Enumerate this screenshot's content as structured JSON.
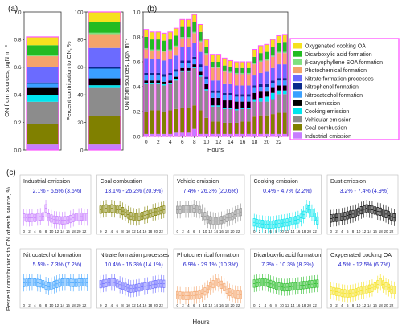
{
  "colors": {
    "Industrial emission": "#c77dff",
    "Coal combustion": "#808000",
    "Vehicular emission": "#8c8c8c",
    "Cooking emission": "#00e5ee",
    "Dust emission": "#000000",
    "Nitrocatechol formation": "#3aa0ff",
    "Nitrophenol formation": "#0a2a8c",
    "Nitrate formation processes": "#6b6bff",
    "Photochemical formation": "#f4a46b",
    "β-caryophyllene SOA formation": "#7fe07f",
    "Dicarboxylic acid formation": "#22bb22",
    "Oxygenated cooking OA": "#f5e11e"
  },
  "chart_data": [
    {
      "panel": "(a)",
      "type": "bar",
      "stacked": true,
      "ylabel": "ON from sources, µgN m⁻³",
      "ylim": [
        0,
        1.0
      ],
      "yticks": [
        "0.0",
        "0.2",
        "0.4",
        "0.6",
        "0.8",
        "1.0"
      ],
      "series": [
        {
          "name": "Industrial emission",
          "values": [
            0.04
          ]
        },
        {
          "name": "Coal combustion",
          "values": [
            0.15
          ]
        },
        {
          "name": "Vehicular emission",
          "values": [
            0.16
          ]
        },
        {
          "name": "Cooking emission",
          "values": [
            0.05
          ]
        },
        {
          "name": "Dust emission",
          "values": [
            0.05
          ]
        },
        {
          "name": "Nitrocatechol formation",
          "values": [
            0.03
          ]
        },
        {
          "name": "Nitrophenol formation",
          "values": [
            0.01
          ]
        },
        {
          "name": "Nitrate formation processes",
          "values": [
            0.11
          ]
        },
        {
          "name": "Photochemical formation",
          "values": [
            0.08
          ]
        },
        {
          "name": "β-caryophyllene SOA formation",
          "values": [
            0.01
          ]
        },
        {
          "name": "Dicarboxylic acid formation",
          "values": [
            0.07
          ]
        },
        {
          "name": "Oxygenated cooking OA",
          "values": [
            0.06
          ]
        }
      ]
    },
    {
      "panel": "(a)",
      "type": "bar",
      "stacked": true,
      "ylabel": "Percent contribution to ON, %",
      "ylim": [
        0,
        100
      ],
      "yticks": [
        "0",
        "20",
        "40",
        "60",
        "80",
        "100"
      ],
      "series": [
        {
          "name": "Industrial emission",
          "values": [
            4
          ]
        },
        {
          "name": "Coal combustion",
          "values": [
            21
          ]
        },
        {
          "name": "Vehicular emission",
          "values": [
            20
          ]
        },
        {
          "name": "Cooking emission",
          "values": [
            2
          ]
        },
        {
          "name": "Dust emission",
          "values": [
            5
          ]
        },
        {
          "name": "Nitrocatechol formation",
          "values": [
            7
          ]
        },
        {
          "name": "Nitrophenol formation",
          "values": [
            1
          ]
        },
        {
          "name": "Nitrate formation processes",
          "values": [
            14
          ]
        },
        {
          "name": "Photochemical formation",
          "values": [
            10
          ]
        },
        {
          "name": "β-caryophyllene SOA formation",
          "values": [
            1
          ]
        },
        {
          "name": "Dicarboxylic acid formation",
          "values": [
            8
          ]
        },
        {
          "name": "Oxygenated cooking OA",
          "values": [
            7
          ]
        }
      ]
    },
    {
      "panel": "(b)",
      "type": "bar",
      "stacked": true,
      "xlabel": "Hours",
      "ylabel": "ON from sources, µgN m⁻³",
      "ylim": [
        0,
        1.0
      ],
      "yticks": [
        "0.0",
        "0.2",
        "0.4",
        "0.6",
        "0.8",
        "1.0"
      ],
      "categories": [
        "0",
        "1",
        "2",
        "3",
        "4",
        "5",
        "6",
        "7",
        "8",
        "9",
        "10",
        "11",
        "12",
        "13",
        "14",
        "15",
        "16",
        "17",
        "18",
        "19",
        "20",
        "21",
        "22",
        "23"
      ],
      "xtick_labels": [
        "0",
        "2",
        "4",
        "6",
        "8",
        "10",
        "12",
        "14",
        "16",
        "18",
        "20",
        "22"
      ],
      "legend": "right",
      "series": [
        {
          "name": "Industrial emission",
          "values": [
            0.02,
            0.02,
            0.02,
            0.02,
            0.02,
            0.03,
            0.03,
            0.03,
            0.06,
            0.02,
            0.02,
            0.02,
            0.02,
            0.02,
            0.02,
            0.02,
            0.02,
            0.02,
            0.02,
            0.02,
            0.02,
            0.02,
            0.02,
            0.02
          ]
        },
        {
          "name": "Coal combustion",
          "values": [
            0.18,
            0.19,
            0.19,
            0.18,
            0.19,
            0.19,
            0.2,
            0.2,
            0.19,
            0.19,
            0.13,
            0.1,
            0.1,
            0.09,
            0.09,
            0.09,
            0.1,
            0.1,
            0.14,
            0.15,
            0.15,
            0.16,
            0.17,
            0.17
          ]
        },
        {
          "name": "Vehicular emission",
          "values": [
            0.22,
            0.21,
            0.21,
            0.21,
            0.21,
            0.23,
            0.29,
            0.29,
            0.3,
            0.27,
            0.22,
            0.12,
            0.12,
            0.11,
            0.11,
            0.1,
            0.1,
            0.1,
            0.12,
            0.11,
            0.11,
            0.12,
            0.15,
            0.15
          ]
        },
        {
          "name": "Cooking emission",
          "values": [
            0.01,
            0.01,
            0.01,
            0.01,
            0.01,
            0.01,
            0.01,
            0.01,
            0.01,
            0.01,
            0.01,
            0.01,
            0.01,
            0.01,
            0.01,
            0.01,
            0.01,
            0.01,
            0.02,
            0.03,
            0.04,
            0.05,
            0.03,
            0.03
          ]
        },
        {
          "name": "Dust emission",
          "values": [
            0.02,
            0.02,
            0.02,
            0.02,
            0.02,
            0.02,
            0.02,
            0.02,
            0.02,
            0.03,
            0.04,
            0.06,
            0.06,
            0.06,
            0.06,
            0.06,
            0.05,
            0.05,
            0.05,
            0.05,
            0.04,
            0.04,
            0.04,
            0.04
          ]
        },
        {
          "name": "Nitrocatechol formation",
          "values": [
            0.04,
            0.04,
            0.04,
            0.04,
            0.04,
            0.04,
            0.04,
            0.04,
            0.04,
            0.04,
            0.04,
            0.04,
            0.04,
            0.04,
            0.04,
            0.04,
            0.04,
            0.04,
            0.04,
            0.04,
            0.04,
            0.04,
            0.04,
            0.04
          ]
        },
        {
          "name": "Nitrophenol formation",
          "values": [
            0.02,
            0.02,
            0.02,
            0.02,
            0.02,
            0.02,
            0.02,
            0.02,
            0.02,
            0.02,
            0.02,
            0.02,
            0.02,
            0.02,
            0.02,
            0.02,
            0.02,
            0.02,
            0.02,
            0.02,
            0.02,
            0.02,
            0.02,
            0.02
          ]
        },
        {
          "name": "Nitrate formation processes",
          "values": [
            0.12,
            0.11,
            0.11,
            0.11,
            0.11,
            0.11,
            0.11,
            0.11,
            0.11,
            0.1,
            0.09,
            0.08,
            0.08,
            0.07,
            0.07,
            0.07,
            0.07,
            0.07,
            0.08,
            0.09,
            0.1,
            0.1,
            0.11,
            0.11
          ]
        },
        {
          "name": "Photochemical formation",
          "values": [
            0.07,
            0.07,
            0.07,
            0.07,
            0.07,
            0.07,
            0.07,
            0.07,
            0.08,
            0.08,
            0.09,
            0.1,
            0.1,
            0.1,
            0.09,
            0.09,
            0.09,
            0.09,
            0.09,
            0.09,
            0.09,
            0.09,
            0.09,
            0.09
          ]
        },
        {
          "name": "β-caryophyllene SOA formation",
          "values": [
            0.01,
            0.01,
            0.01,
            0.01,
            0.01,
            0.01,
            0.01,
            0.01,
            0.01,
            0.01,
            0.01,
            0.01,
            0.01,
            0.01,
            0.01,
            0.01,
            0.01,
            0.01,
            0.01,
            0.01,
            0.01,
            0.01,
            0.01,
            0.01
          ]
        },
        {
          "name": "Dicarboxylic acid formation",
          "values": [
            0.09,
            0.08,
            0.08,
            0.08,
            0.08,
            0.08,
            0.08,
            0.08,
            0.08,
            0.07,
            0.05,
            0.04,
            0.04,
            0.04,
            0.04,
            0.04,
            0.04,
            0.04,
            0.05,
            0.06,
            0.06,
            0.07,
            0.07,
            0.08
          ]
        },
        {
          "name": "Oxygenated cooking OA",
          "values": [
            0.06,
            0.06,
            0.06,
            0.06,
            0.06,
            0.06,
            0.06,
            0.06,
            0.06,
            0.06,
            0.06,
            0.06,
            0.06,
            0.06,
            0.05,
            0.05,
            0.05,
            0.05,
            0.06,
            0.06,
            0.06,
            0.06,
            0.06,
            0.06
          ]
        }
      ]
    },
    {
      "panel": "(c)",
      "type": "box",
      "xlabel": "Hours",
      "ylabel": "Percent contributions to ON of each source, %",
      "xtick_labels": [
        "0",
        "2",
        "4",
        "6",
        "8",
        "10",
        "12",
        "14",
        "16",
        "18",
        "20",
        "22"
      ],
      "subplots": [
        {
          "name": "Industrial emission",
          "range_label": "2.1% - 6.5% (3.6%)",
          "medians": [
            3.2,
            3.0,
            3.0,
            3.1,
            3.0,
            3.3,
            3.5,
            3.6,
            6.5,
            3.2,
            2.8,
            2.4,
            2.3,
            2.2,
            2.1,
            2.2,
            2.3,
            2.6,
            3.0,
            3.3,
            3.4,
            3.5,
            3.3,
            3.3
          ]
        },
        {
          "name": "Coal combustion",
          "range_label": "13.1% - 26.2% (20.9%)",
          "medians": [
            24,
            25,
            26,
            25,
            26,
            25,
            24,
            24,
            22,
            20,
            17,
            15,
            14,
            13.1,
            14,
            15,
            16,
            17,
            18,
            20,
            21,
            22,
            23,
            24
          ]
        },
        {
          "name": "Vehicle emission",
          "range_label": "7.4% - 26.3% (20.6%)",
          "medians": [
            24,
            24,
            25,
            25,
            25,
            25,
            26.3,
            25,
            24,
            20,
            15,
            10,
            9,
            8,
            7.4,
            8,
            9,
            10,
            12,
            13,
            15,
            17,
            19,
            21
          ]
        },
        {
          "name": "Cooking emission",
          "range_label": "0.4% - 4.7% (2.2%)",
          "medians": [
            1.0,
            0.8,
            0.7,
            0.6,
            0.5,
            0.5,
            0.4,
            0.5,
            0.6,
            0.7,
            0.8,
            0.9,
            1.0,
            1.2,
            1.4,
            1.6,
            1.8,
            2.2,
            3.0,
            4.7,
            4.4,
            3.5,
            2.5,
            1.5
          ]
        },
        {
          "name": "Dust emission",
          "range_label": "3.2% - 7.4% (4.9%)",
          "medians": [
            3.2,
            3.4,
            3.5,
            3.8,
            4.0,
            4.2,
            4.5,
            4.8,
            5.0,
            5.5,
            6.0,
            6.6,
            7.0,
            7.4,
            7.0,
            6.8,
            6.5,
            6.2,
            6.0,
            5.5,
            5.0,
            4.5,
            4.0,
            3.6
          ]
        },
        {
          "name": "Nitrocatechol formation",
          "range_label": "5.5% - 7.3% (7.2%)",
          "medians": [
            7.0,
            7.1,
            7.2,
            7.3,
            7.2,
            7.0,
            6.8,
            6.5,
            6.0,
            5.5,
            5.8,
            6.2,
            6.6,
            7.0,
            7.2,
            7.3,
            7.2,
            7.1,
            7.0,
            7.0,
            7.1,
            7.2,
            7.2,
            7.1
          ]
        },
        {
          "name": "Nitrate formation processes",
          "range_label": "10.4% - 16.3% (14.1%)",
          "medians": [
            14.5,
            15,
            15.5,
            16,
            16.3,
            16,
            15,
            14,
            13,
            12,
            11,
            10.4,
            10.6,
            11,
            11.5,
            12,
            12.5,
            13,
            13.5,
            14,
            14.5,
            15,
            15,
            14.8
          ]
        },
        {
          "name": "Photochemical formation",
          "range_label": "6.9% - 29.1% (10.3%)",
          "medians": [
            8,
            7.5,
            7,
            6.9,
            7,
            7.2,
            7.5,
            8,
            9,
            11,
            14,
            18,
            22,
            26,
            29.1,
            28,
            25,
            21,
            17,
            13,
            11,
            10,
            9,
            8.5
          ]
        },
        {
          "name": "Dicarboxylic acid formation",
          "range_label": "7.3% - 10.3% (8.3%)",
          "medians": [
            9.5,
            9.8,
            10.0,
            10.3,
            10.1,
            9.8,
            9.3,
            8.8,
            8.2,
            7.8,
            7.5,
            7.3,
            7.4,
            7.6,
            7.8,
            8.0,
            8.2,
            8.4,
            8.6,
            8.8,
            9.0,
            9.2,
            9.4,
            9.5
          ]
        },
        {
          "name": "Oxygenated cooking OA",
          "range_label": "4.5% - 12.5% (6.7%)",
          "medians": [
            6.5,
            6.2,
            5.8,
            5.5,
            5.0,
            4.8,
            4.5,
            4.7,
            5.0,
            5.5,
            6.0,
            6.5,
            7.0,
            7.5,
            8.0,
            8.5,
            9.5,
            11,
            12.5,
            11,
            9.5,
            8.5,
            7.5,
            7
          ]
        }
      ]
    }
  ]
}
